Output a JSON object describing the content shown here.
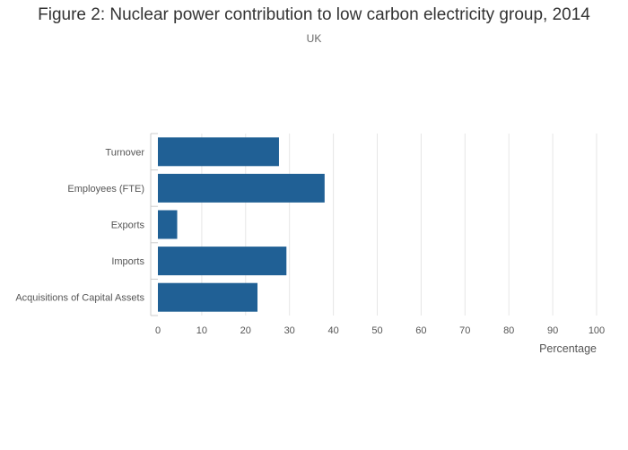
{
  "chart_data": {
    "type": "bar",
    "orientation": "horizontal",
    "title": "Figure 2: Nuclear power contribution to low carbon electricity group, 2014",
    "subtitle": "UK",
    "categories": [
      "Turnover",
      "Employees (FTE)",
      "Exports",
      "Imports",
      "Acquisitions of Capital Assets"
    ],
    "values": [
      27.6,
      38.0,
      4.4,
      29.3,
      22.7
    ],
    "xlabel": "Percentage",
    "ylabel": "",
    "xlim": [
      0,
      100
    ],
    "xticks": [
      "0",
      "10",
      "20",
      "30",
      "40",
      "50",
      "60",
      "70",
      "80",
      "90",
      "100"
    ],
    "grid": true,
    "legend": "none",
    "bar_color": "#206095",
    "grid_color": "#e6e6e6"
  }
}
